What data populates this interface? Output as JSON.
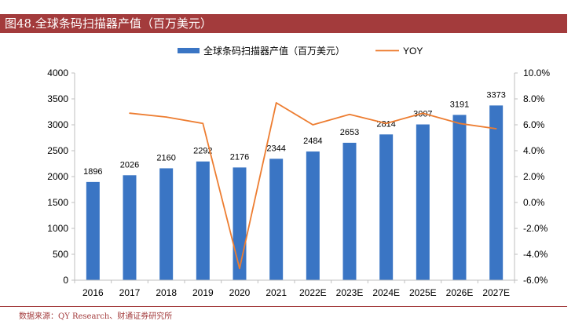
{
  "figure_title": "图48.全球条码扫描器产值（百万美元）",
  "source": "数据来源：QY Research、财通证券研究所",
  "colors": {
    "bar": "#3a75c4",
    "line": "#ed7d31",
    "title_bg": "#a33b3c",
    "axis_text": "#000000"
  },
  "chart_data": {
    "type": "bar+line",
    "categories": [
      "2016",
      "2017",
      "2018",
      "2019",
      "2020",
      "2021",
      "2022E",
      "2023E",
      "2024E",
      "2025E",
      "2026E",
      "2027E"
    ],
    "series": [
      {
        "name": "全球条码扫描器产值（百万美元）",
        "type": "bar",
        "axis": "left",
        "values": [
          1896,
          2026,
          2160,
          2292,
          2176,
          2344,
          2484,
          2653,
          2814,
          3007,
          3191,
          3373
        ]
      },
      {
        "name": "YOY",
        "type": "line",
        "axis": "right",
        "values": [
          null,
          6.9,
          6.6,
          6.1,
          -5.1,
          7.7,
          6.0,
          6.8,
          6.1,
          6.9,
          6.1,
          5.7
        ]
      }
    ],
    "y_left": {
      "min": 0,
      "max": 4000,
      "ticks": [
        "0",
        "500",
        "1000",
        "1500",
        "2000",
        "2500",
        "3000",
        "3500",
        "4000"
      ]
    },
    "y_right": {
      "min": -6,
      "max": 10,
      "ticks": [
        "-6.0%",
        "-4.0%",
        "-2.0%",
        "0.0%",
        "2.0%",
        "4.0%",
        "6.0%",
        "8.0%",
        "10.0%"
      ]
    },
    "data_labels": [
      "1896",
      "2026",
      "2160",
      "2292",
      "2176",
      "2344",
      "2484",
      "2653",
      "2814",
      "3007",
      "3191",
      "3373"
    ],
    "legend_position": "top-center",
    "grid": false
  }
}
